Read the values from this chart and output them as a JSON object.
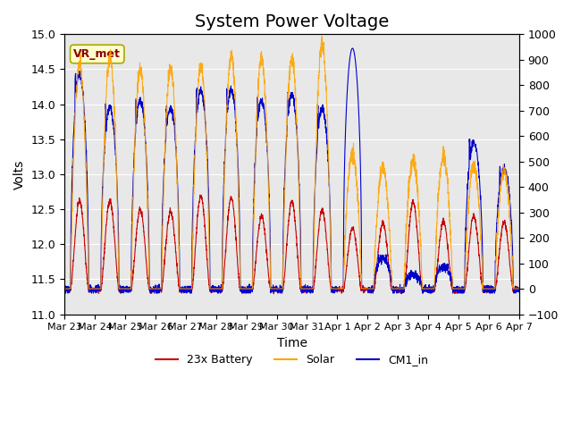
{
  "title": "System Power Voltage",
  "xlabel": "Time",
  "ylabel": "Volts",
  "ylabel_right": "",
  "ylim_left": [
    11.0,
    15.0
  ],
  "ylim_right": [
    -100,
    1000
  ],
  "yticks_left": [
    11.0,
    11.5,
    12.0,
    12.5,
    13.0,
    13.5,
    14.0,
    14.5,
    15.0
  ],
  "yticks_right": [
    -100,
    0,
    100,
    200,
    300,
    400,
    500,
    600,
    700,
    800,
    900,
    1000
  ],
  "background_color": "#e8e8e8",
  "figure_color": "#ffffff",
  "title_fontsize": 14,
  "label_fontsize": 10,
  "tick_fontsize": 9,
  "legend_labels": [
    "23x Battery",
    "Solar",
    "CM1_in"
  ],
  "legend_colors": [
    "#cc0000",
    "#ffa500",
    "#0000cc"
  ],
  "vr_met_label": "VR_met",
  "num_days": 15,
  "start_date": "Mar 23",
  "date_labels": [
    "Mar 23",
    "Mar 24",
    "Mar 25",
    "Mar 26",
    "Mar 27",
    "Mar 28",
    "Mar 29",
    "Mar 30",
    "Mar 31",
    "Apr 1",
    "Apr 2",
    "Apr 3",
    "Apr 4",
    "Apr 5",
    "Apr 6",
    "Apr 7"
  ]
}
